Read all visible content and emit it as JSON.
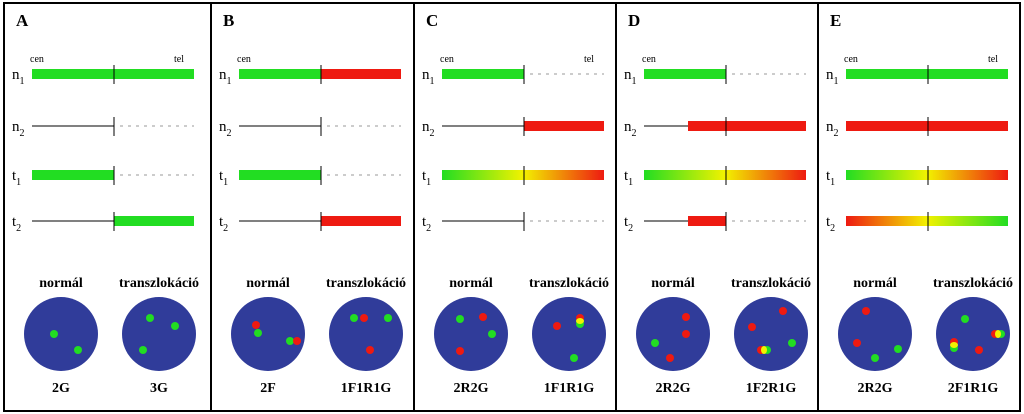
{
  "row_labels": [
    {
      "base": "n",
      "sub": "1"
    },
    {
      "base": "n",
      "sub": "2"
    },
    {
      "base": "t",
      "sub": "1"
    },
    {
      "base": "t",
      "sub": "2"
    }
  ],
  "panels": [
    {
      "label": "A",
      "cen": "cen",
      "tel": "tel",
      "normal": "normál",
      "transl": "transzlokáció",
      "normal_code": "2G",
      "transl_code": "3G"
    },
    {
      "label": "B",
      "cen": "cen",
      "normal": "normál",
      "transl": "transzlokáció",
      "normal_code": "2F",
      "transl_code": "1F1R1G"
    },
    {
      "label": "C",
      "cen": "cen",
      "tel": "tel",
      "normal": "normál",
      "transl": "transzlokáció",
      "normal_code": "2R2G",
      "transl_code": "1F1R1G"
    },
    {
      "label": "D",
      "cen": "cen",
      "normal": "normál",
      "transl": "transzlokáció",
      "normal_code": "2R2G",
      "transl_code": "1F2R1G"
    },
    {
      "label": "E",
      "cen": "cen",
      "tel": "tel",
      "normal": "normál",
      "transl": "transzlokáció",
      "normal_code": "2R2G",
      "transl_code": "2F1R1G"
    }
  ]
}
